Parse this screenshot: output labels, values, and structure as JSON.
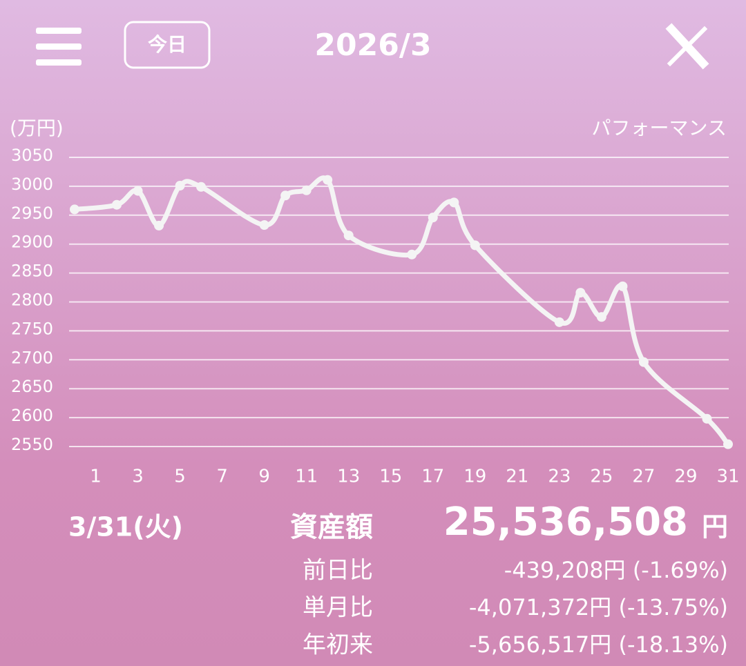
{
  "header": {
    "button": "今日",
    "title": "2026/3"
  },
  "chart_data": {
    "type": "line",
    "y_unit": "(万円)",
    "mode": "パフォーマンス",
    "x": [
      0,
      2,
      3,
      4,
      5,
      6,
      9,
      10,
      11,
      12,
      13,
      16,
      17,
      18,
      19,
      23,
      24,
      25,
      26,
      27,
      30,
      31
    ],
    "series": [
      {
        "color": "#f4f4f4",
        "values": [
          2960,
          2968,
          2992,
          2932,
          3001,
          2999,
          2933,
          2984,
          2993,
          3011,
          2915,
          2882,
          2946,
          2972,
          2898,
          2765,
          2816,
          2774,
          2827,
          2696,
          2598,
          2554
        ]
      }
    ],
    "xlim": [
      0,
      31
    ],
    "xticks": [
      1,
      3,
      5,
      7,
      9,
      11,
      13,
      15,
      17,
      19,
      21,
      23,
      25,
      27,
      29,
      31
    ],
    "ylim": [
      2550,
      3050
    ],
    "yticks": [
      2550,
      2600,
      2650,
      2700,
      2750,
      2800,
      2850,
      2900,
      2950,
      3000,
      3050
    ],
    "grid": true
  },
  "summary": {
    "date": "3/31(火)",
    "label": "資産額",
    "amount": "25,536,508",
    "unit": "円",
    "rows": [
      {
        "label": "前日比",
        "value": "-439,208円 (-1.69%)"
      },
      {
        "label": "単月比",
        "value": "-4,071,372円 (-13.75%)"
      },
      {
        "label": "年初来",
        "value": "-5,656,517円 (-18.13%)"
      }
    ]
  }
}
